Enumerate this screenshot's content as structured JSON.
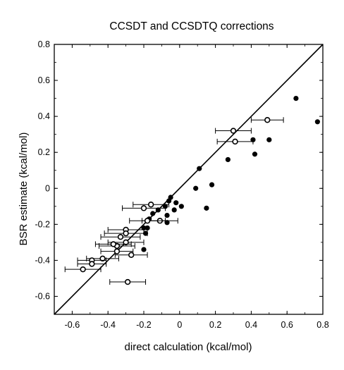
{
  "chart_data": {
    "type": "scatter",
    "title": "CCSDT and CCSDTQ corrections",
    "xlabel": "direct calculation (kcal/mol)",
    "ylabel": "BSR estimate (kcal/mol)",
    "xlim": [
      -0.7,
      0.8
    ],
    "ylim": [
      -0.7,
      0.8
    ],
    "x_ticks": [
      -0.6,
      -0.4,
      -0.2,
      0,
      0.2,
      0.4,
      0.6,
      0.8
    ],
    "x_tick_labels": [
      "-0.6",
      "-0.4",
      "-0.2",
      "0",
      "0.2",
      "0.4",
      "0.6",
      "0.8"
    ],
    "y_ticks": [
      -0.6,
      -0.4,
      -0.2,
      0,
      0.2,
      0.4,
      0.6,
      0.8
    ],
    "y_tick_labels": [
      "-0.6",
      "-0.4",
      "-0.2",
      "0",
      "0.2",
      "0.4",
      "0.6",
      "0.8"
    ],
    "grid": false,
    "reference_line": {
      "x": [
        -0.7,
        0.8
      ],
      "y": [
        -0.7,
        0.8
      ]
    },
    "series": [
      {
        "marker": "filled-circle",
        "points": [
          {
            "x": 0.65,
            "y": 0.5
          },
          {
            "x": 0.77,
            "y": 0.37
          },
          {
            "x": 0.41,
            "y": 0.27
          },
          {
            "x": 0.5,
            "y": 0.27
          },
          {
            "x": 0.42,
            "y": 0.19
          },
          {
            "x": 0.27,
            "y": 0.16
          },
          {
            "x": 0.11,
            "y": 0.11
          },
          {
            "x": 0.18,
            "y": 0.02
          },
          {
            "x": 0.09,
            "y": 0.0
          },
          {
            "x": 0.15,
            "y": -0.11
          },
          {
            "x": -0.05,
            "y": -0.05
          },
          {
            "x": -0.06,
            "y": -0.07
          },
          {
            "x": -0.02,
            "y": -0.08
          },
          {
            "x": 0.01,
            "y": -0.1
          },
          {
            "x": -0.03,
            "y": -0.12
          },
          {
            "x": -0.08,
            "y": -0.1
          },
          {
            "x": -0.07,
            "y": -0.15
          },
          {
            "x": -0.12,
            "y": -0.12
          },
          {
            "x": -0.15,
            "y": -0.14
          },
          {
            "x": -0.17,
            "y": -0.17
          },
          {
            "x": -0.07,
            "y": -0.19
          },
          {
            "x": -0.18,
            "y": -0.22
          },
          {
            "x": -0.19,
            "y": -0.25
          },
          {
            "x": -0.2,
            "y": -0.22
          },
          {
            "x": -0.2,
            "y": -0.34
          }
        ]
      },
      {
        "marker": "open-circle-with-x-error",
        "points": [
          {
            "x": 0.49,
            "y": 0.38,
            "xerr": 0.09
          },
          {
            "x": 0.3,
            "y": 0.32,
            "xerr": 0.1
          },
          {
            "x": 0.31,
            "y": 0.26,
            "xerr": 0.1
          },
          {
            "x": -0.16,
            "y": -0.09,
            "xerr": 0.1
          },
          {
            "x": -0.2,
            "y": -0.11,
            "xerr": 0.12
          },
          {
            "x": -0.11,
            "y": -0.18,
            "xerr": 0.1
          },
          {
            "x": -0.18,
            "y": -0.18,
            "xerr": 0.1
          },
          {
            "x": -0.3,
            "y": -0.23,
            "xerr": 0.1
          },
          {
            "x": -0.3,
            "y": -0.25,
            "xerr": 0.12
          },
          {
            "x": -0.33,
            "y": -0.27,
            "xerr": 0.11
          },
          {
            "x": -0.3,
            "y": -0.3,
            "xerr": 0.1
          },
          {
            "x": -0.35,
            "y": -0.32,
            "xerr": 0.1
          },
          {
            "x": -0.37,
            "y": -0.31,
            "xerr": 0.1
          },
          {
            "x": -0.35,
            "y": -0.35,
            "xerr": 0.09
          },
          {
            "x": -0.27,
            "y": -0.37,
            "xerr": 0.09
          },
          {
            "x": -0.43,
            "y": -0.39,
            "xerr": 0.09
          },
          {
            "x": -0.49,
            "y": -0.4,
            "xerr": 0.08
          },
          {
            "x": -0.49,
            "y": -0.42,
            "xerr": 0.08
          },
          {
            "x": -0.54,
            "y": -0.45,
            "xerr": 0.1
          },
          {
            "x": -0.29,
            "y": -0.52,
            "xerr": 0.1
          }
        ]
      }
    ]
  }
}
